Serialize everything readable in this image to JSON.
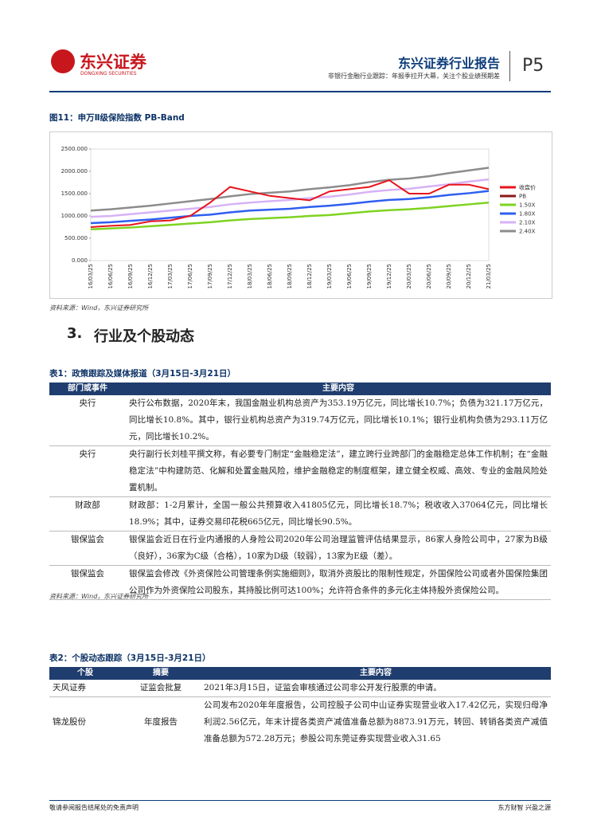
{
  "header": {
    "logo_text": "东兴证券",
    "logo_subtext": "DONGXING SECURITIES",
    "report_type": "东兴证券行业报告",
    "subtitle": "非银行金融行业跟踪：年报季拉开大幕，关注个股业绩预期差",
    "page": "P5"
  },
  "figure": {
    "title": "图11：申万Ⅱ级保险指数 PB-Band",
    "source": "资料来源：Wind，东兴证券研究所"
  },
  "chart_data": {
    "type": "line",
    "categories": [
      "16/03/25",
      "16/06/25",
      "16/09/25",
      "16/12/25",
      "17/03/25",
      "17/06/25",
      "17/09/25",
      "17/12/25",
      "18/03/25",
      "18/06/25",
      "18/09/25",
      "18/12/25",
      "19/03/25",
      "19/06/25",
      "19/09/25",
      "19/12/25",
      "20/03/25",
      "20/06/25",
      "20/09/25",
      "20/12/25",
      "21/03/25"
    ],
    "series": [
      {
        "name": "收盘价",
        "color": "#e8141c",
        "values": [
          750,
          780,
          800,
          880,
          900,
          1000,
          1300,
          1650,
          1550,
          1450,
          1400,
          1350,
          1550,
          1600,
          1650,
          1800,
          1500,
          1500,
          1700,
          1700,
          1600
        ]
      },
      {
        "name": "PB",
        "color": "#8b1a1a",
        "values": [
          null,
          null,
          null,
          null,
          null,
          null,
          null,
          null,
          null,
          null,
          null,
          null,
          null,
          null,
          null,
          null,
          null,
          null,
          null,
          null,
          null
        ]
      },
      {
        "name": "1.50X",
        "color": "#7ed321",
        "values": [
          700,
          720,
          740,
          770,
          800,
          830,
          860,
          900,
          930,
          950,
          970,
          1000,
          1020,
          1060,
          1100,
          1130,
          1150,
          1180,
          1220,
          1260,
          1300
        ]
      },
      {
        "name": "1.80X",
        "color": "#2f5ff0",
        "values": [
          840,
          860,
          890,
          920,
          960,
          1000,
          1030,
          1080,
          1120,
          1140,
          1160,
          1200,
          1230,
          1270,
          1320,
          1360,
          1380,
          1420,
          1470,
          1510,
          1560
        ]
      },
      {
        "name": "2.10X",
        "color": "#d7b2f5",
        "values": [
          980,
          1000,
          1040,
          1080,
          1120,
          1160,
          1200,
          1260,
          1300,
          1330,
          1360,
          1400,
          1430,
          1480,
          1540,
          1580,
          1610,
          1660,
          1710,
          1770,
          1820
        ]
      },
      {
        "name": "2.40X",
        "color": "#8c8c8c",
        "values": [
          1120,
          1150,
          1190,
          1230,
          1280,
          1330,
          1380,
          1440,
          1490,
          1520,
          1550,
          1600,
          1640,
          1690,
          1760,
          1810,
          1840,
          1890,
          1960,
          2020,
          2080
        ]
      }
    ],
    "ylim": [
      0,
      2500
    ],
    "yticks": [
      {
        "value": 0,
        "label": "0.000"
      },
      {
        "value": 500,
        "label": "500.000"
      },
      {
        "value": 1000,
        "label": "1000.000"
      },
      {
        "value": 1500,
        "label": "1500.000"
      },
      {
        "value": 2000,
        "label": "2000.000"
      },
      {
        "value": 2500,
        "label": "2500.000"
      }
    ],
    "grid": false,
    "legend": "right"
  },
  "section": {
    "number": "3.",
    "title": "行业及个股动态"
  },
  "table1": {
    "title": "表1：政策跟踪及媒体报道（3月15日-3月21日）",
    "columns": [
      "部门或事件",
      "主要内容"
    ],
    "rows": [
      [
        "央行",
        "央行公布数据，2020年末，我国金融业机构总资产为353.19万亿元，同比增长10.7%；负债为321.17万亿元，同比增长10.8%。其中，银行业机构总资产为319.74万亿元，同比增长10.1%；银行业机构负债为293.11万亿元，同比增长10.2%。"
      ],
      [
        "央行",
        "央行副行长刘桂平撰文称，有必要专门制定“金融稳定法”，建立跨行业跨部门的金融稳定总体工作机制；在“金融稳定法”中构建防范、化解和处置金融风险，维护金融稳定的制度框架，建立健全权威、高效、专业的金融风险处置机制。"
      ],
      [
        "财政部",
        "财政部：1-2月累计，全国一般公共预算收入41805亿元，同比增长18.7%；税收收入37064亿元，同比增长18.9%；其中，证券交易印花税665亿元，同比增长90.5%。"
      ],
      [
        "银保监会",
        "银保监会近日在行业内通报的人身险公司2020年公司治理监管评估结果显示，86家人身险公司中，27家为B级（良好），36家为C级（合格），10家为D级（较弱），13家为E级（差）。"
      ],
      [
        "银保监会",
        "银保监会修改《外资保险公司管理条例实施细则》，取消外资股比的限制性规定，外国保险公司或者外国保险集团公司作为外资保险公司股东，其持股比例可达100%；允许符合条件的多元化主体持股外资保险公司。"
      ]
    ],
    "source": "资料来源：Wind，东兴证券研究所"
  },
  "table2": {
    "title": "表2：个股动态跟踪（3月15日-3月21日）",
    "columns": [
      "个股",
      "摘要",
      "主要内容"
    ],
    "rows": [
      [
        "天风证券",
        "证监会批复",
        "2021年3月15日，证监会审核通过公司非公开发行股票的申请。"
      ],
      [
        "锦龙股份",
        "年度报告",
        "公司发布2020年年度报告，公司控股子公司中山证券实现营业收入17.42亿元，实现归母净利润2.56亿元，年末计提各类资产减值准备总额为8873.91万元，转回、转销各类资产减值准备总额为572.28万元；参股公司东莞证券实现营业收入31.65"
      ]
    ]
  },
  "footer": {
    "left": "敬请参阅报告结尾处的免责声明",
    "right": "东方财智 兴盈之源"
  }
}
